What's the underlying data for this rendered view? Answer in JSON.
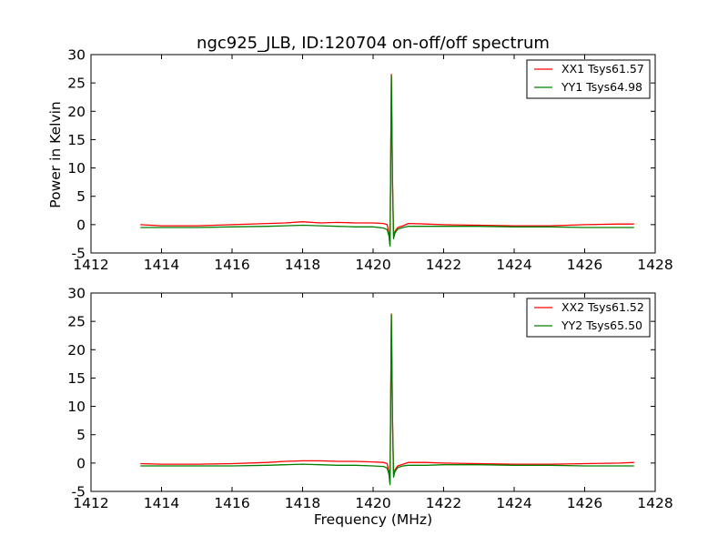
{
  "chart_data": [
    {
      "type": "line",
      "title": "ngc925_JLB, ID:120704 on-off/off spectrum",
      "xlabel": "",
      "ylabel": "Power in Kelvin",
      "xlim": [
        1412,
        1428
      ],
      "ylim": [
        -5,
        30
      ],
      "xticks": [
        1412,
        1414,
        1416,
        1418,
        1420,
        1422,
        1424,
        1426,
        1428
      ],
      "yticks": [
        -5,
        0,
        5,
        10,
        15,
        20,
        25,
        30
      ],
      "grid": false,
      "legend": "top-right",
      "series": [
        {
          "name": "XX1 Tsys61.57",
          "color": "#ff0000",
          "x": [
            1413.4,
            1414.0,
            1415.0,
            1416.0,
            1417.0,
            1417.5,
            1418.0,
            1418.5,
            1419.0,
            1419.5,
            1420.0,
            1420.3,
            1420.4,
            1420.45,
            1420.48,
            1420.52,
            1420.55,
            1420.58,
            1420.62,
            1420.7,
            1420.85,
            1421.0,
            1421.5,
            1422.0,
            1423.0,
            1424.0,
            1425.0,
            1426.0,
            1427.0,
            1427.4
          ],
          "y": [
            0.0,
            -0.2,
            -0.2,
            0.0,
            0.2,
            0.3,
            0.5,
            0.3,
            0.4,
            0.3,
            0.3,
            0.2,
            0.0,
            -1.5,
            -3.5,
            26.5,
            8.0,
            -2.0,
            -1.2,
            -0.5,
            -0.2,
            0.2,
            0.1,
            0.0,
            -0.1,
            -0.2,
            -0.2,
            0.0,
            0.1,
            0.1
          ]
        },
        {
          "name": "YY1 Tsys64.98",
          "color": "#008000",
          "x": [
            1413.4,
            1414.0,
            1415.0,
            1416.0,
            1417.0,
            1417.5,
            1418.0,
            1418.5,
            1419.0,
            1419.5,
            1420.0,
            1420.3,
            1420.4,
            1420.45,
            1420.48,
            1420.52,
            1420.55,
            1420.58,
            1420.62,
            1420.7,
            1420.85,
            1421.0,
            1421.5,
            1422.0,
            1423.0,
            1424.0,
            1425.0,
            1426.0,
            1427.0,
            1427.4
          ],
          "y": [
            -0.5,
            -0.5,
            -0.5,
            -0.4,
            -0.3,
            -0.2,
            -0.1,
            -0.2,
            -0.3,
            -0.4,
            -0.4,
            -0.6,
            -0.9,
            -2.0,
            -3.8,
            26.3,
            7.5,
            -2.5,
            -1.5,
            -0.8,
            -0.5,
            -0.3,
            -0.3,
            -0.3,
            -0.3,
            -0.4,
            -0.4,
            -0.5,
            -0.5,
            -0.5
          ]
        }
      ]
    },
    {
      "type": "line",
      "title": "",
      "xlabel": "Frequency (MHz)",
      "ylabel": "",
      "xlim": [
        1412,
        1428
      ],
      "ylim": [
        -5,
        30
      ],
      "xticks": [
        1412,
        1414,
        1416,
        1418,
        1420,
        1422,
        1424,
        1426,
        1428
      ],
      "yticks": [
        -5,
        0,
        5,
        10,
        15,
        20,
        25,
        30
      ],
      "grid": false,
      "legend": "top-right",
      "series": [
        {
          "name": "XX2 Tsys61.52",
          "color": "#ff0000",
          "x": [
            1413.4,
            1414.0,
            1415.0,
            1416.0,
            1417.0,
            1417.5,
            1418.0,
            1418.5,
            1419.0,
            1419.5,
            1420.0,
            1420.3,
            1420.4,
            1420.45,
            1420.48,
            1420.52,
            1420.55,
            1420.58,
            1420.62,
            1420.7,
            1420.85,
            1421.0,
            1421.5,
            1422.0,
            1423.0,
            1424.0,
            1425.0,
            1426.0,
            1427.0,
            1427.4
          ],
          "y": [
            -0.1,
            -0.2,
            -0.2,
            -0.1,
            0.1,
            0.3,
            0.4,
            0.4,
            0.3,
            0.3,
            0.2,
            0.1,
            -0.1,
            -1.5,
            -3.5,
            26.3,
            8.0,
            -2.0,
            -1.2,
            -0.5,
            -0.2,
            0.1,
            0.1,
            0.0,
            -0.1,
            -0.2,
            -0.2,
            -0.1,
            0.0,
            0.1
          ]
        },
        {
          "name": "YY2 Tsys65.50",
          "color": "#008000",
          "x": [
            1413.4,
            1414.0,
            1415.0,
            1416.0,
            1417.0,
            1417.5,
            1418.0,
            1418.5,
            1419.0,
            1419.5,
            1420.0,
            1420.3,
            1420.4,
            1420.45,
            1420.48,
            1420.52,
            1420.55,
            1420.58,
            1420.62,
            1420.7,
            1420.85,
            1421.0,
            1421.5,
            1422.0,
            1423.0,
            1424.0,
            1425.0,
            1426.0,
            1427.0,
            1427.4
          ],
          "y": [
            -0.5,
            -0.5,
            -0.5,
            -0.5,
            -0.4,
            -0.3,
            -0.2,
            -0.3,
            -0.4,
            -0.4,
            -0.5,
            -0.6,
            -0.9,
            -2.0,
            -3.8,
            26.2,
            7.5,
            -2.5,
            -1.5,
            -0.8,
            -0.5,
            -0.4,
            -0.4,
            -0.3,
            -0.3,
            -0.4,
            -0.4,
            -0.5,
            -0.5,
            -0.5
          ]
        }
      ]
    }
  ]
}
